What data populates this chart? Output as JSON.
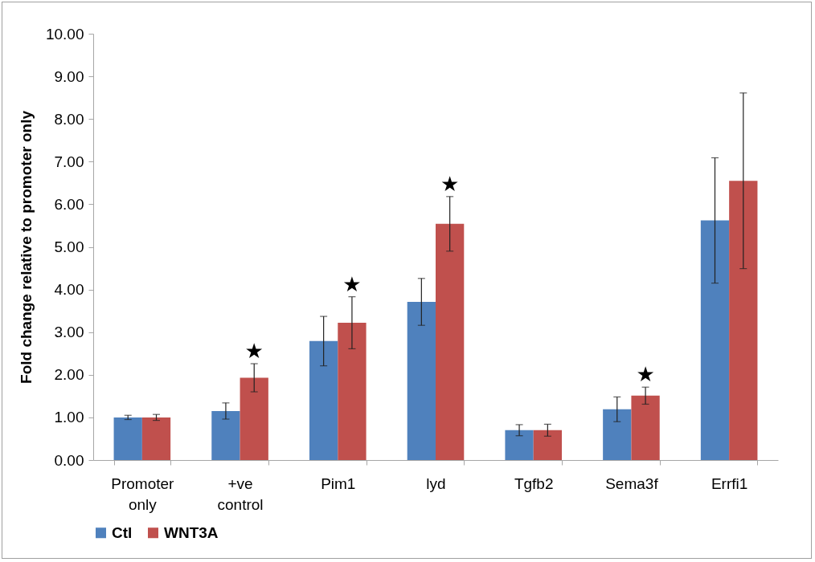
{
  "chart_data": {
    "type": "bar",
    "ylabel": "Fold change relative to promoter only",
    "categories": [
      "Promoter only",
      "+ve control",
      "Pim1",
      "lyd",
      "Tgfb2",
      "Sema3f",
      "Errfi1"
    ],
    "series": [
      {
        "name": "Ctl",
        "color": "#4f81bd",
        "values": [
          1.0,
          1.15,
          2.79,
          3.71,
          0.7,
          1.19,
          5.62
        ],
        "errors": [
          0.05,
          0.19,
          0.58,
          0.55,
          0.13,
          0.29,
          1.47
        ]
      },
      {
        "name": "WNT3A",
        "color": "#c0504d",
        "values": [
          1.0,
          1.93,
          3.22,
          5.54,
          0.7,
          1.51,
          6.55
        ],
        "errors": [
          0.07,
          0.33,
          0.61,
          0.64,
          0.14,
          0.2,
          2.06
        ]
      }
    ],
    "ylim": [
      0,
      10
    ],
    "yticks": [
      {
        "value": 0,
        "label": "0.00"
      },
      {
        "value": 1,
        "label": "1.00"
      },
      {
        "value": 2,
        "label": "2.00"
      },
      {
        "value": 3,
        "label": "3.00"
      },
      {
        "value": 4,
        "label": "4.00"
      },
      {
        "value": 5,
        "label": "5.00"
      },
      {
        "value": 6,
        "label": "6.00"
      },
      {
        "value": 7,
        "label": "7.00"
      },
      {
        "value": 8,
        "label": "8.00"
      },
      {
        "value": 9,
        "label": "9.00"
      },
      {
        "value": 10,
        "label": "10.00"
      }
    ],
    "annotations": [
      {
        "text": "★",
        "x": "+ve control",
        "y": 1.93
      },
      {
        "text": "★",
        "x": "Pim1",
        "y": 3.22
      },
      {
        "text": "★",
        "x": "lyd",
        "y": 5.54
      },
      {
        "text": "★",
        "x": "Sema3f",
        "y": 1.51
      }
    ],
    "grid": false,
    "legend": "bottom"
  }
}
